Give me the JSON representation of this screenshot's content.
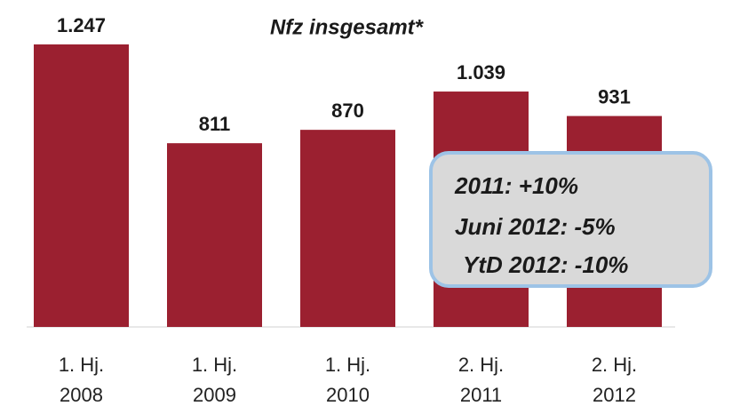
{
  "chart_data": {
    "type": "bar",
    "title": "Nfz insgesamt*",
    "categories": [
      [
        "1. Hj.",
        "2008"
      ],
      [
        "1. Hj.",
        "2009"
      ],
      [
        "1. Hj.",
        "2010"
      ],
      [
        "2. Hj.",
        "2011"
      ],
      [
        "2. Hj.",
        "2012"
      ]
    ],
    "values": [
      1247,
      811,
      870,
      1039,
      931
    ],
    "value_labels": [
      "1.247",
      "811",
      "870",
      "1.039",
      "931"
    ],
    "color": "#9b2030",
    "annotations": [
      "2011: +10%",
      "Juni 2012: -5%",
      "YtD 2012: -10%"
    ]
  }
}
